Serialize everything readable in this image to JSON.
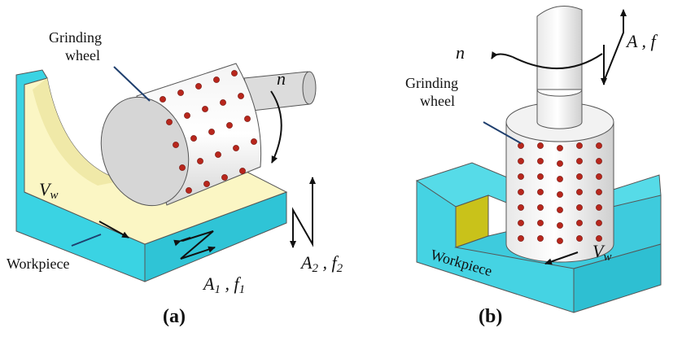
{
  "panels": [
    {
      "label": "(a)",
      "wheel_label": [
        "Grinding",
        "wheel"
      ],
      "rotation": "n",
      "feed": {
        "symbol": "V",
        "subscript": "w"
      },
      "workpiece": "Workpiece",
      "motion_1": {
        "amplitude": "A",
        "amplitude_sub": "1",
        "separator": " , ",
        "feed": "f",
        "feed_sub": "1"
      },
      "motion_2": {
        "amplitude": "A",
        "amplitude_sub": "2",
        "separator": " , ",
        "feed": "f",
        "feed_sub": "2"
      }
    },
    {
      "label": "(b)",
      "wheel_label": [
        "Grinding",
        "wheel"
      ],
      "rotation": "n",
      "feed": {
        "symbol": "V",
        "subscript": "w"
      },
      "workpiece": "Workpiece",
      "motion": {
        "amplitude": "A",
        "separator": " , ",
        "feed": "f"
      }
    }
  ]
}
